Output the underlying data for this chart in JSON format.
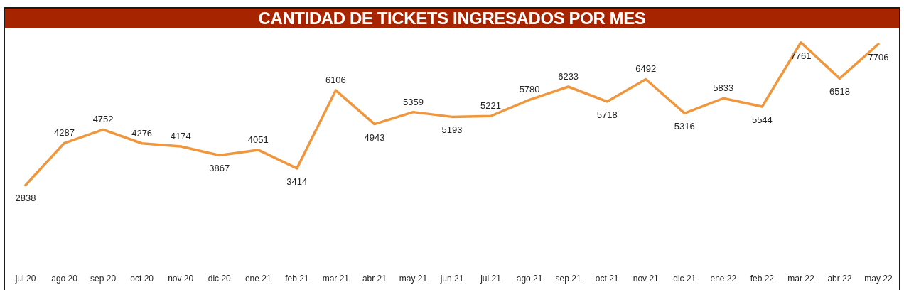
{
  "chart_data": {
    "type": "line",
    "title": "CANTIDAD DE TICKETS INGRESADOS POR MES",
    "categories": [
      "jul 20",
      "ago 20",
      "sep 20",
      "oct 20",
      "nov 20",
      "dic 20",
      "ene 21",
      "feb 21",
      "mar 21",
      "abr 21",
      "may 21",
      "jun 21",
      "jul 21",
      "ago 21",
      "sep 21",
      "oct 21",
      "nov 21",
      "dic 21",
      "ene 22",
      "feb 22",
      "mar 22",
      "abr 22",
      "may 22"
    ],
    "values": [
      2838,
      4287,
      4752,
      4276,
      4174,
      3867,
      4051,
      3414,
      6106,
      4943,
      5359,
      5193,
      5221,
      5780,
      6233,
      5718,
      6492,
      5316,
      5833,
      5544,
      7761,
      6518,
      7706
    ],
    "color": "#f0963c",
    "data_labels": true
  }
}
